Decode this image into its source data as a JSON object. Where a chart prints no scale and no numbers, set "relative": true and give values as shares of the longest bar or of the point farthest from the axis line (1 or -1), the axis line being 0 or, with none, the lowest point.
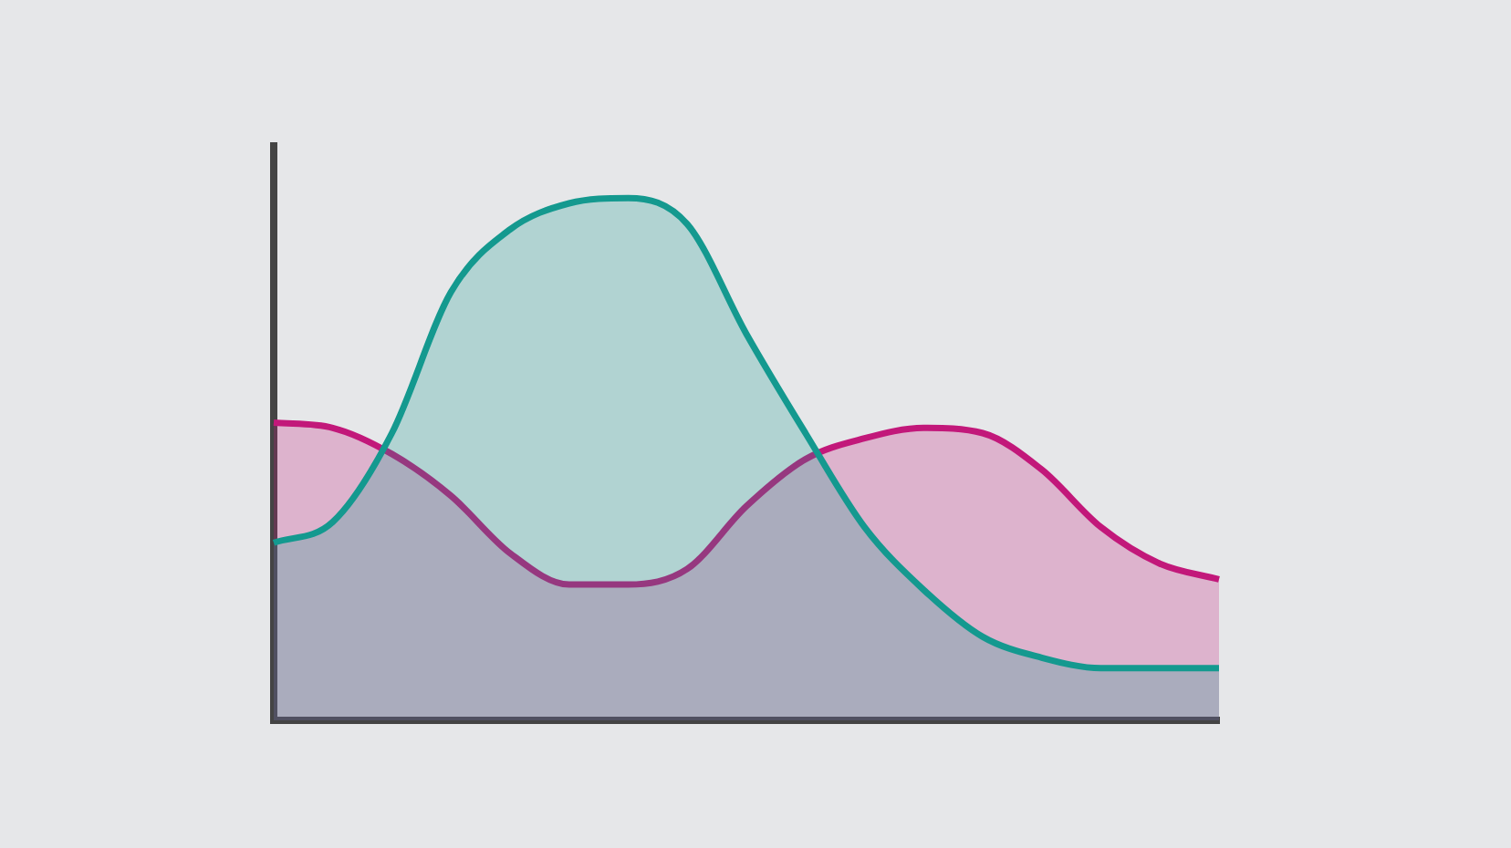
{
  "chart_data": {
    "type": "area",
    "relative": true,
    "categories": [
      null,
      null,
      null,
      null,
      null,
      null,
      null,
      null,
      null,
      null,
      null,
      null,
      null,
      null,
      null,
      null,
      null
    ],
    "series": [
      {
        "color": "#14998f",
        "values": [
          0.34,
          0.38,
          0.55,
          0.82,
          0.94,
          0.99,
          1,
          0.95,
          0.74,
          0.55,
          0.37,
          0.25,
          0.16,
          0.12,
          0.1,
          0.1,
          0.1
        ]
      },
      {
        "color": "#c2187a",
        "values": [
          0.57,
          0.56,
          0.51,
          0.43,
          0.32,
          0.26,
          0.26,
          0.29,
          0.41,
          0.5,
          0.54,
          0.56,
          0.55,
          0.48,
          0.37,
          0.3,
          0.27
        ]
      }
    ],
    "grid": false,
    "legend": false
  }
}
